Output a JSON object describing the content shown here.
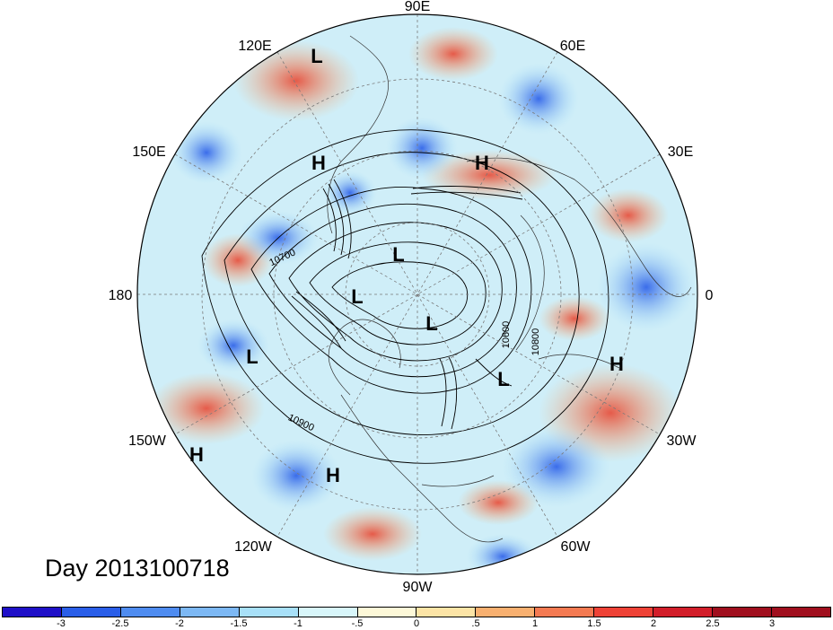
{
  "day_label": "Day 2013100718",
  "longitude_labels": [
    "90E",
    "60E",
    "30E",
    "0",
    "30W",
    "60W",
    "90W",
    "120W",
    "150W",
    "180",
    "150E",
    "120E"
  ],
  "pressure_centers": {
    "highs": [
      "H",
      "H",
      "H",
      "H",
      "H"
    ],
    "lows": [
      "L",
      "L",
      "L",
      "L",
      "L",
      "L"
    ]
  },
  "contour_labels": [
    "10700",
    "10900",
    "10600",
    "10800"
  ],
  "colorbar": {
    "ticks": [
      "-3",
      "-2.5",
      "-2",
      "-1.5",
      "-1",
      "-.5",
      "0",
      ".5",
      "1",
      "1.5",
      "2",
      "2.5",
      "3"
    ],
    "colors": [
      "#1f10c8",
      "#2a5ee8",
      "#4f8cf0",
      "#7db8f4",
      "#a8e0f8",
      "#d8f6fa",
      "#fdf8d8",
      "#fce4a6",
      "#f8b070",
      "#f47a52",
      "#ee4236",
      "#d21e2a",
      "#a00f1e",
      "#a00f1e"
    ]
  }
}
